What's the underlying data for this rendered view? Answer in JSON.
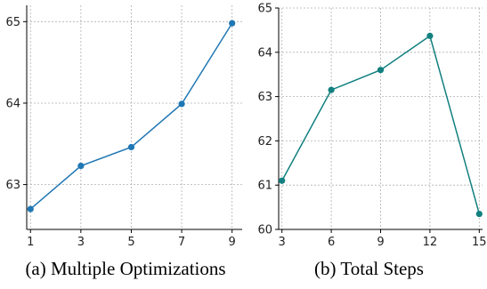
{
  "chart_data": [
    {
      "type": "line",
      "caption": "(a)  Multiple Optimizations",
      "x": [
        1,
        3,
        5,
        7,
        9
      ],
      "series": [
        {
          "values": [
            62.7,
            63.23,
            63.46,
            63.99,
            64.98
          ],
          "color": "#1f77b4"
        }
      ],
      "xticks": [
        "1",
        "3",
        "5",
        "7",
        "9"
      ],
      "yticks": [
        "63",
        "64",
        "65"
      ],
      "xlim": [
        0.85,
        9.4
      ],
      "ylim": [
        62.45,
        65.2
      ],
      "grid": true
    },
    {
      "type": "line",
      "caption": "(b)  Total Steps",
      "x": [
        3,
        6,
        9,
        12,
        15
      ],
      "series": [
        {
          "values": [
            61.1,
            63.15,
            63.6,
            64.37,
            60.35
          ],
          "color": "#138080"
        }
      ],
      "xticks": [
        "3",
        "6",
        "9",
        "12",
        "15"
      ],
      "yticks": [
        "60",
        "61",
        "62",
        "63",
        "64",
        "65"
      ],
      "xlim": [
        2.8,
        15.2
      ],
      "ylim": [
        60,
        65
      ],
      "grid": true
    }
  ]
}
